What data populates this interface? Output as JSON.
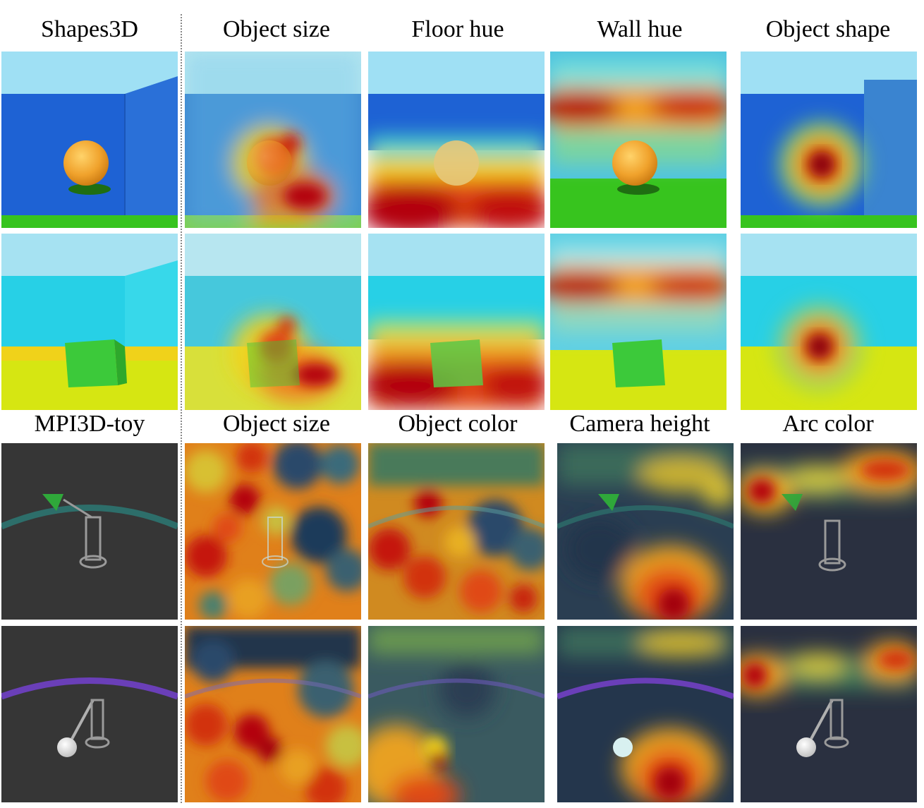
{
  "section_top": {
    "dataset_label": "Shapes3D",
    "factor_labels": [
      "Object size",
      "Floor hue",
      "Wall hue",
      "Object shape"
    ],
    "rows": [
      {
        "object": "sphere",
        "wall_color": "#1e62d4",
        "floor_color": "#37c41e",
        "object_color": "#f0a22c"
      },
      {
        "object": "cube",
        "wall_color": "#27d0e6",
        "floor_color": "#d6e612",
        "object_color": "#3cc93a"
      }
    ]
  },
  "section_bottom": {
    "dataset_label": "MPI3D-toy",
    "factor_labels": [
      "Object size",
      "Object color",
      "Camera height",
      "Arc color"
    ],
    "rows": [
      {
        "arc_color": "#2d6e6a",
        "object_color": "#2fa83a"
      },
      {
        "arc_color": "#6a3fb8",
        "object_color": "#f2f2f2"
      }
    ]
  },
  "colors": {
    "heat_high": "#b3000f",
    "heat_mid": "#f2d21e",
    "heat_low": "#1d3a5a"
  }
}
